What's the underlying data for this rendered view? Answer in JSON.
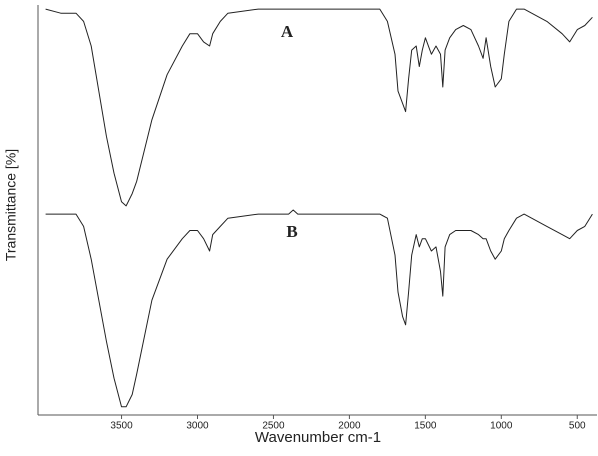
{
  "chart_data": {
    "type": "line",
    "x_label": "Wavenumber cm-1",
    "y_label": "Transmittance [%]",
    "x": [
      4000,
      3900,
      3800,
      3750,
      3700,
      3650,
      3600,
      3550,
      3500,
      3470,
      3430,
      3400,
      3300,
      3200,
      3100,
      3050,
      3000,
      2960,
      2920,
      2900,
      2850,
      2800,
      2600,
      2400,
      2370,
      2340,
      2200,
      2000,
      1800,
      1750,
      1700,
      1680,
      1650,
      1630,
      1610,
      1590,
      1560,
      1540,
      1520,
      1500,
      1460,
      1430,
      1400,
      1385,
      1370,
      1340,
      1300,
      1250,
      1200,
      1150,
      1120,
      1100,
      1070,
      1040,
      1000,
      980,
      950,
      900,
      850,
      800,
      700,
      600,
      550,
      500,
      450,
      400
    ],
    "series": [
      {
        "name": "A",
        "color": "#222222",
        "values": [
          99,
          98,
          98,
          96,
          90,
          79,
          68,
          59,
          52,
          51,
          54,
          57,
          72,
          83,
          90,
          93,
          93,
          91,
          90,
          93,
          96,
          98,
          99,
          99,
          99,
          99,
          99,
          99,
          99,
          96,
          88,
          79,
          76,
          74,
          82,
          89,
          90,
          85,
          89,
          92,
          88,
          90,
          88,
          80,
          89,
          92,
          94,
          95,
          94,
          90,
          87,
          92,
          85,
          80,
          82,
          88,
          96,
          99,
          99,
          98,
          96,
          93,
          91,
          94,
          95,
          97
        ]
      },
      {
        "name": "B",
        "color": "#222222",
        "values": [
          49,
          49,
          49,
          46,
          38,
          28,
          18,
          9,
          2,
          2,
          5,
          10,
          28,
          38,
          43,
          45,
          45,
          43,
          40,
          44,
          46,
          48,
          49,
          49,
          50,
          49,
          49,
          49,
          49,
          48,
          39,
          30,
          24,
          22,
          30,
          39,
          44,
          41,
          43,
          43,
          40,
          41,
          35,
          29,
          41,
          44,
          45,
          45,
          45,
          44,
          43,
          43,
          40,
          38,
          40,
          43,
          45,
          48,
          49,
          48,
          46,
          44,
          43,
          45,
          46,
          49
        ]
      }
    ],
    "xlim": [
      4050,
      370
    ],
    "xticks": [
      3500,
      3000,
      2500,
      2000,
      1500,
      1000,
      500
    ],
    "ylim": [
      0,
      100
    ]
  }
}
